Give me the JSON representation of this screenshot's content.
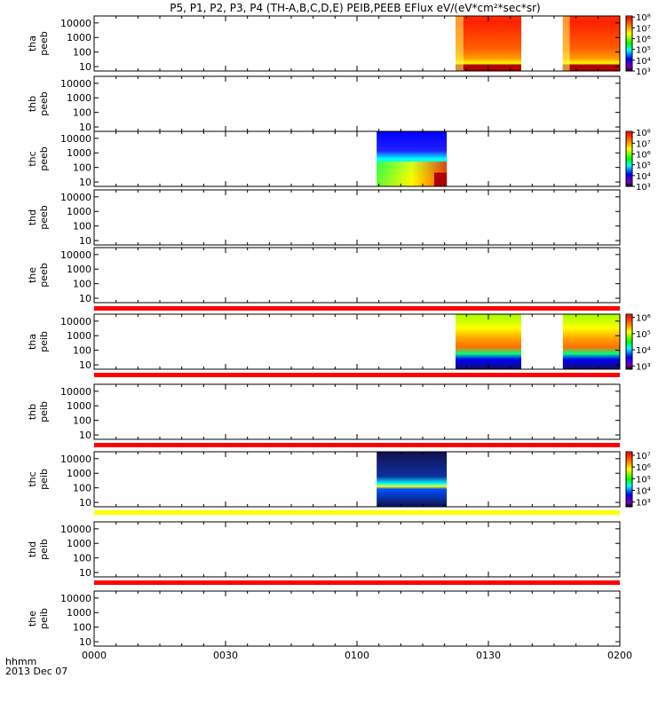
{
  "title": "P5, P1, P2, P3, P4 (TH-A,B,C,D,E) PEIB,PEEB EFlux eV/(eV*cm²*sec*sr)",
  "colors": {
    "flag_red": "#ff0000",
    "flag_yellow": "#ffff00",
    "axis": "#000000"
  },
  "chart_data": {
    "type": "heatmap",
    "x": {
      "ticks": [
        "0000",
        "0030",
        "0100",
        "0130",
        "0200"
      ],
      "range_minutes": [
        0,
        120
      ],
      "label_line1": "hhmm",
      "label_line2": "2013 Dec 07"
    },
    "y_scale": "log",
    "y_ticks": [
      "10",
      "100",
      "1000",
      "10000"
    ],
    "y_range": [
      5,
      30000
    ],
    "panels": [
      {
        "id": "tha-peeb",
        "probe": "tha",
        "product": "peeb",
        "has_data": true,
        "segments_min": [
          [
            82.5,
            97.5
          ],
          [
            107,
            120
          ]
        ],
        "colorbar": {
          "ticks": [
            [
              "10⁸",
              8
            ],
            [
              "10⁷",
              7
            ],
            [
              "10⁶",
              6
            ],
            [
              "10⁵",
              5
            ],
            [
              "10⁴",
              4
            ],
            [
              "10³",
              3
            ]
          ],
          "min_exp": 3,
          "max_exp": 8.1
        },
        "flag": null
      },
      {
        "id": "thb-peeb",
        "probe": "thb",
        "product": "peeb",
        "has_data": false,
        "segments_min": [],
        "colorbar": null,
        "flag": null
      },
      {
        "id": "thc-peeb",
        "probe": "thc",
        "product": "peeb",
        "has_data": true,
        "segments_min": [
          [
            64.5,
            80.5
          ]
        ],
        "colorbar": {
          "ticks": [
            [
              "10⁸",
              8
            ],
            [
              "10⁷",
              7
            ],
            [
              "10⁶",
              6
            ],
            [
              "10⁵",
              5
            ],
            [
              "10⁴",
              4
            ],
            [
              "10³",
              3
            ]
          ],
          "min_exp": 3,
          "max_exp": 8.1
        },
        "flag": null
      },
      {
        "id": "thd-peeb",
        "probe": "thd",
        "product": "peeb",
        "has_data": false,
        "segments_min": [],
        "colorbar": null,
        "flag": null
      },
      {
        "id": "the-peeb",
        "probe": "the",
        "product": "peeb",
        "has_data": false,
        "segments_min": [],
        "colorbar": null,
        "flag": "red"
      },
      {
        "id": "tha-peib",
        "probe": "tha",
        "product": "peib",
        "has_data": true,
        "segments_min": [
          [
            82.5,
            97.5
          ],
          [
            107,
            120
          ]
        ],
        "colorbar": {
          "ticks": [
            [
              "10⁶",
              6
            ],
            [
              "10⁵",
              5
            ],
            [
              "10⁴",
              4
            ],
            [
              "10³",
              3
            ]
          ],
          "min_exp": 2.8,
          "max_exp": 6.2
        },
        "flag": "red"
      },
      {
        "id": "thb-peib",
        "probe": "thb",
        "product": "peib",
        "has_data": false,
        "segments_min": [],
        "colorbar": null,
        "flag": "red"
      },
      {
        "id": "thc-peib",
        "probe": "thc",
        "product": "peib",
        "has_data": true,
        "segments_min": [
          [
            64.5,
            80.5
          ]
        ],
        "colorbar": {
          "ticks": [
            [
              "10⁷",
              7
            ],
            [
              "10⁶",
              6
            ],
            [
              "10⁵",
              5
            ],
            [
              "10⁴",
              4
            ],
            [
              "10³",
              3
            ]
          ],
          "min_exp": 2.6,
          "max_exp": 7.3
        },
        "flag": "yellow"
      },
      {
        "id": "thd-peib",
        "probe": "thd",
        "product": "peib",
        "has_data": false,
        "segments_min": [],
        "colorbar": null,
        "flag": "red"
      },
      {
        "id": "the-peib",
        "probe": "the",
        "product": "peib",
        "has_data": false,
        "segments_min": [],
        "colorbar": null,
        "flag": null
      }
    ]
  }
}
